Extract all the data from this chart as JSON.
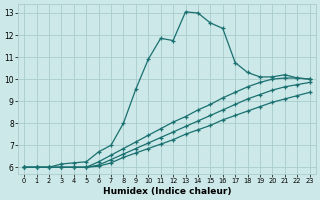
{
  "title": "",
  "xlabel": "Humidex (Indice chaleur)",
  "ylabel": "",
  "bg_color": "#cce8e8",
  "grid_color": "#aacccc",
  "line_color": "#1a7070",
  "xlim": [
    -0.5,
    23.5
  ],
  "ylim": [
    5.7,
    13.4
  ],
  "xticks": [
    0,
    1,
    2,
    3,
    4,
    5,
    6,
    7,
    8,
    9,
    10,
    11,
    12,
    13,
    14,
    15,
    16,
    17,
    18,
    19,
    20,
    21,
    22,
    23
  ],
  "yticks": [
    6,
    7,
    8,
    9,
    10,
    11,
    12,
    13
  ],
  "curves": [
    {
      "x": [
        0,
        1,
        2,
        3,
        4,
        5,
        6,
        7,
        8,
        9,
        10,
        11,
        12,
        13,
        14,
        15,
        16,
        17,
        18,
        19,
        20,
        21,
        22,
        23
      ],
      "y": [
        6,
        6,
        6,
        6.15,
        6.2,
        6.25,
        6.7,
        7.0,
        8.0,
        9.55,
        10.9,
        11.85,
        11.75,
        13.05,
        13.0,
        12.55,
        12.3,
        10.75,
        10.3,
        10.1,
        10.1,
        10.2,
        10.05,
        10.0
      ]
    },
    {
      "x": [
        0,
        1,
        2,
        3,
        4,
        5,
        6,
        7,
        8,
        9,
        10,
        11,
        12,
        13,
        14,
        15,
        16,
        17,
        18,
        19,
        20,
        21,
        22,
        23
      ],
      "y": [
        6,
        6,
        6,
        6,
        6,
        6,
        6.25,
        6.55,
        6.85,
        7.15,
        7.45,
        7.75,
        8.05,
        8.3,
        8.6,
        8.85,
        9.15,
        9.4,
        9.65,
        9.85,
        10.0,
        10.05,
        10.05,
        10.0
      ]
    },
    {
      "x": [
        0,
        1,
        2,
        3,
        4,
        5,
        6,
        7,
        8,
        9,
        10,
        11,
        12,
        13,
        14,
        15,
        16,
        17,
        18,
        19,
        20,
        21,
        22,
        23
      ],
      "y": [
        6,
        6,
        6,
        6,
        6,
        6,
        6.1,
        6.35,
        6.6,
        6.85,
        7.1,
        7.35,
        7.6,
        7.85,
        8.1,
        8.35,
        8.6,
        8.85,
        9.1,
        9.3,
        9.5,
        9.65,
        9.75,
        9.85
      ]
    },
    {
      "x": [
        0,
        1,
        2,
        3,
        4,
        5,
        6,
        7,
        8,
        9,
        10,
        11,
        12,
        13,
        14,
        15,
        16,
        17,
        18,
        19,
        20,
        21,
        22,
        23
      ],
      "y": [
        6,
        6,
        6,
        6,
        6,
        6,
        6.05,
        6.2,
        6.45,
        6.65,
        6.85,
        7.05,
        7.25,
        7.5,
        7.7,
        7.9,
        8.15,
        8.35,
        8.55,
        8.75,
        8.95,
        9.1,
        9.25,
        9.4
      ]
    }
  ],
  "marker": "+",
  "markersize": 3.5,
  "linewidth": 0.9
}
